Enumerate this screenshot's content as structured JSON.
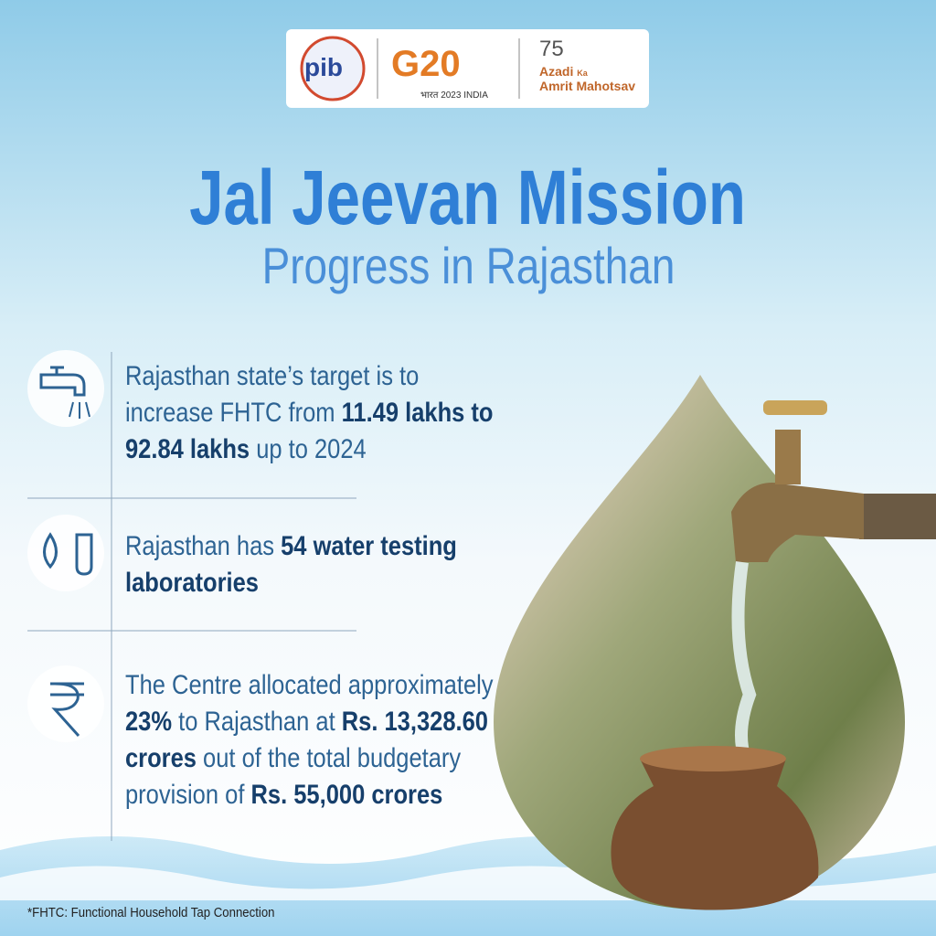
{
  "logos": {
    "pib": "pib",
    "g20": "G20",
    "g20_sub": "भारत 2023 INDIA",
    "akam_number": "75",
    "akam_line1": "Azadi",
    "akam_ka": "Ka",
    "akam_line2": "Amrit",
    "akam_line3": "Mahotsav"
  },
  "header": {
    "title": "Jal Jeevan Mission",
    "subtitle": "Progress in Rajasthan"
  },
  "items": [
    {
      "segments": [
        {
          "text": "Rajasthan state’s target is to increase FHTC from "
        },
        {
          "text": "11.49 lakhs to 92.84 lakhs",
          "bold": true
        },
        {
          "text": " up to 2024"
        }
      ]
    },
    {
      "segments": [
        {
          "text": "Rajasthan has "
        },
        {
          "text": "54 water testing laboratories",
          "bold": true
        }
      ]
    },
    {
      "segments": [
        {
          "text": "The Centre allocated approximately "
        },
        {
          "text": "23%",
          "bold": true
        },
        {
          "text": " to Rajasthan at "
        },
        {
          "text": "Rs. 13,328.60 crores",
          "bold": true
        },
        {
          "text": " out of the total budgetary provision of "
        },
        {
          "text": "Rs. 55,000 crores",
          "bold": true
        }
      ]
    }
  ],
  "footnote": "*FHTC: Functional Household Tap Connection"
}
